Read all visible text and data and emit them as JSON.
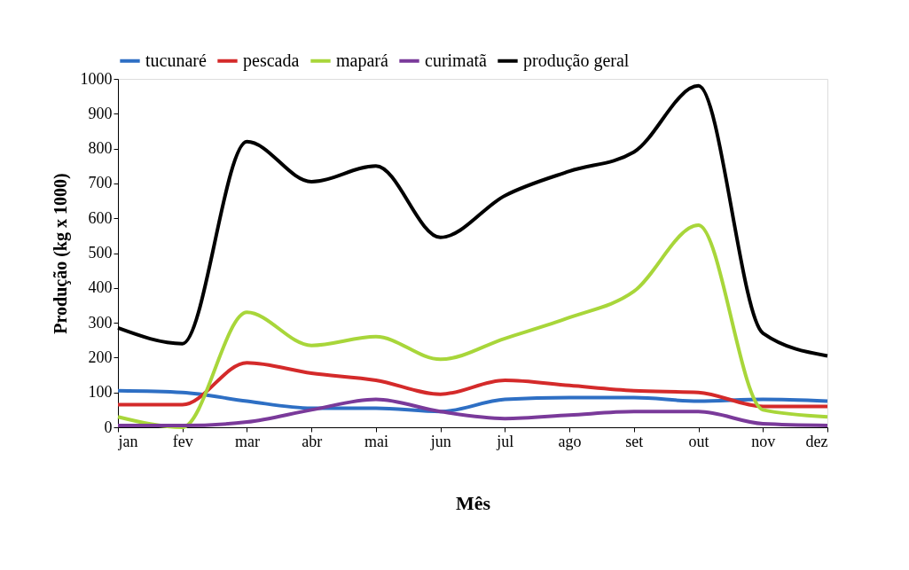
{
  "chart_data": {
    "type": "line",
    "xlabel": "Mês",
    "ylabel": "Produção (kg x 1000)",
    "categories": [
      "jan",
      "fev",
      "mar",
      "abr",
      "mai",
      "jun",
      "jul",
      "ago",
      "set",
      "out",
      "nov",
      "dez"
    ],
    "series": [
      {
        "name": "tucunaré",
        "color": "#2e6fc4",
        "values": [
          105,
          100,
          75,
          55,
          55,
          45,
          80,
          85,
          85,
          75,
          80,
          75
        ]
      },
      {
        "name": "pescada",
        "color": "#d42a2a",
        "values": [
          65,
          65,
          185,
          155,
          135,
          95,
          135,
          120,
          105,
          100,
          60,
          60
        ]
      },
      {
        "name": "mapará",
        "color": "#a8d63a",
        "values": [
          30,
          0,
          330,
          235,
          260,
          195,
          255,
          315,
          390,
          580,
          50,
          30
        ]
      },
      {
        "name": "curimatã",
        "color": "#7a3a9a",
        "values": [
          5,
          5,
          15,
          50,
          80,
          45,
          25,
          35,
          45,
          45,
          10,
          5
        ]
      },
      {
        "name": "produção geral",
        "color": "#000000",
        "values": [
          285,
          240,
          820,
          705,
          750,
          545,
          665,
          735,
          790,
          980,
          270,
          205
        ]
      }
    ],
    "ylim": [
      0,
      1000
    ],
    "yticks": [
      0,
      100,
      200,
      300,
      400,
      500,
      600,
      700,
      800,
      900,
      1000
    ],
    "grid": false,
    "legend": "top",
    "marker": "none",
    "line_style": "solid"
  }
}
